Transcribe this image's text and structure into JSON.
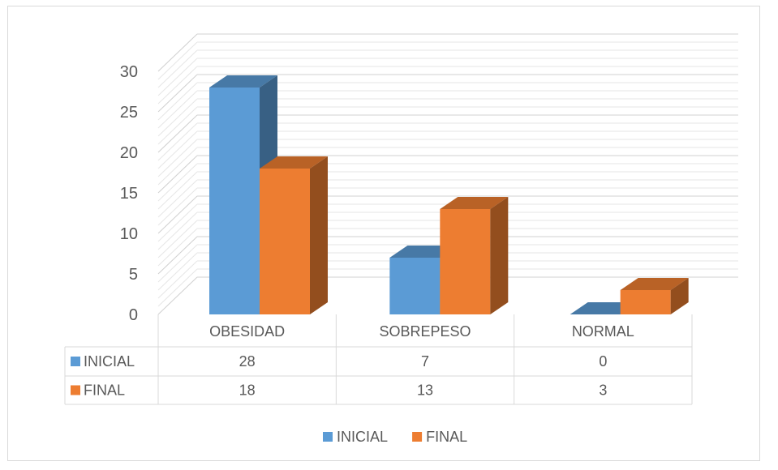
{
  "chart_data": {
    "type": "bar",
    "title": "",
    "xlabel": "",
    "ylabel": "",
    "categories": [
      "OBESIDAD",
      "SOBREPESO",
      "NORMAL"
    ],
    "series": [
      {
        "name": "INICIAL",
        "values": [
          28,
          7,
          0
        ],
        "color": "#5b9bd5"
      },
      {
        "name": "FINAL",
        "values": [
          18,
          13,
          3
        ],
        "color": "#ed7d31"
      }
    ],
    "ylim": [
      0,
      30
    ],
    "yticks": [
      0,
      5,
      10,
      15,
      20,
      25,
      30
    ],
    "grid": true,
    "data_table": true,
    "legend_position": "bottom"
  }
}
